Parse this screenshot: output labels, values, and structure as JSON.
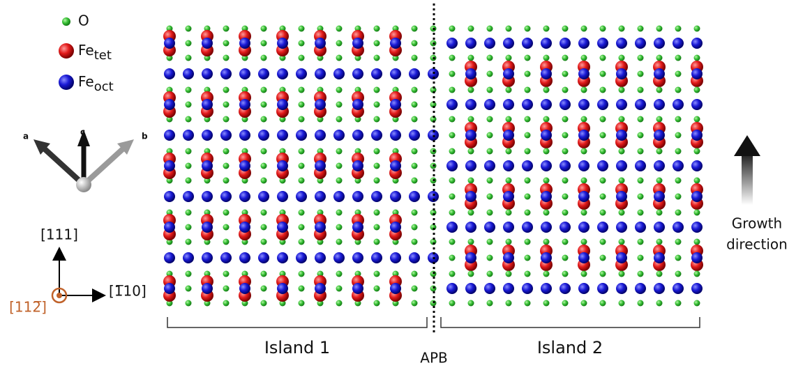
{
  "legend": [
    {
      "label": "O"
    },
    {
      "label": "Fe",
      "subscript": "tet"
    },
    {
      "label": "Fe",
      "subscript": "oct"
    }
  ],
  "lattice_axes": [
    "a",
    "c",
    "b"
  ],
  "directions": {
    "vertical": "[111]",
    "horizontal": "[1̅10]",
    "normal": "[112̅]"
  },
  "regions": {
    "left": "Island 1",
    "boundary": "APB",
    "right": "Island 2"
  },
  "growth": [
    "Growth",
    "direction"
  ]
}
